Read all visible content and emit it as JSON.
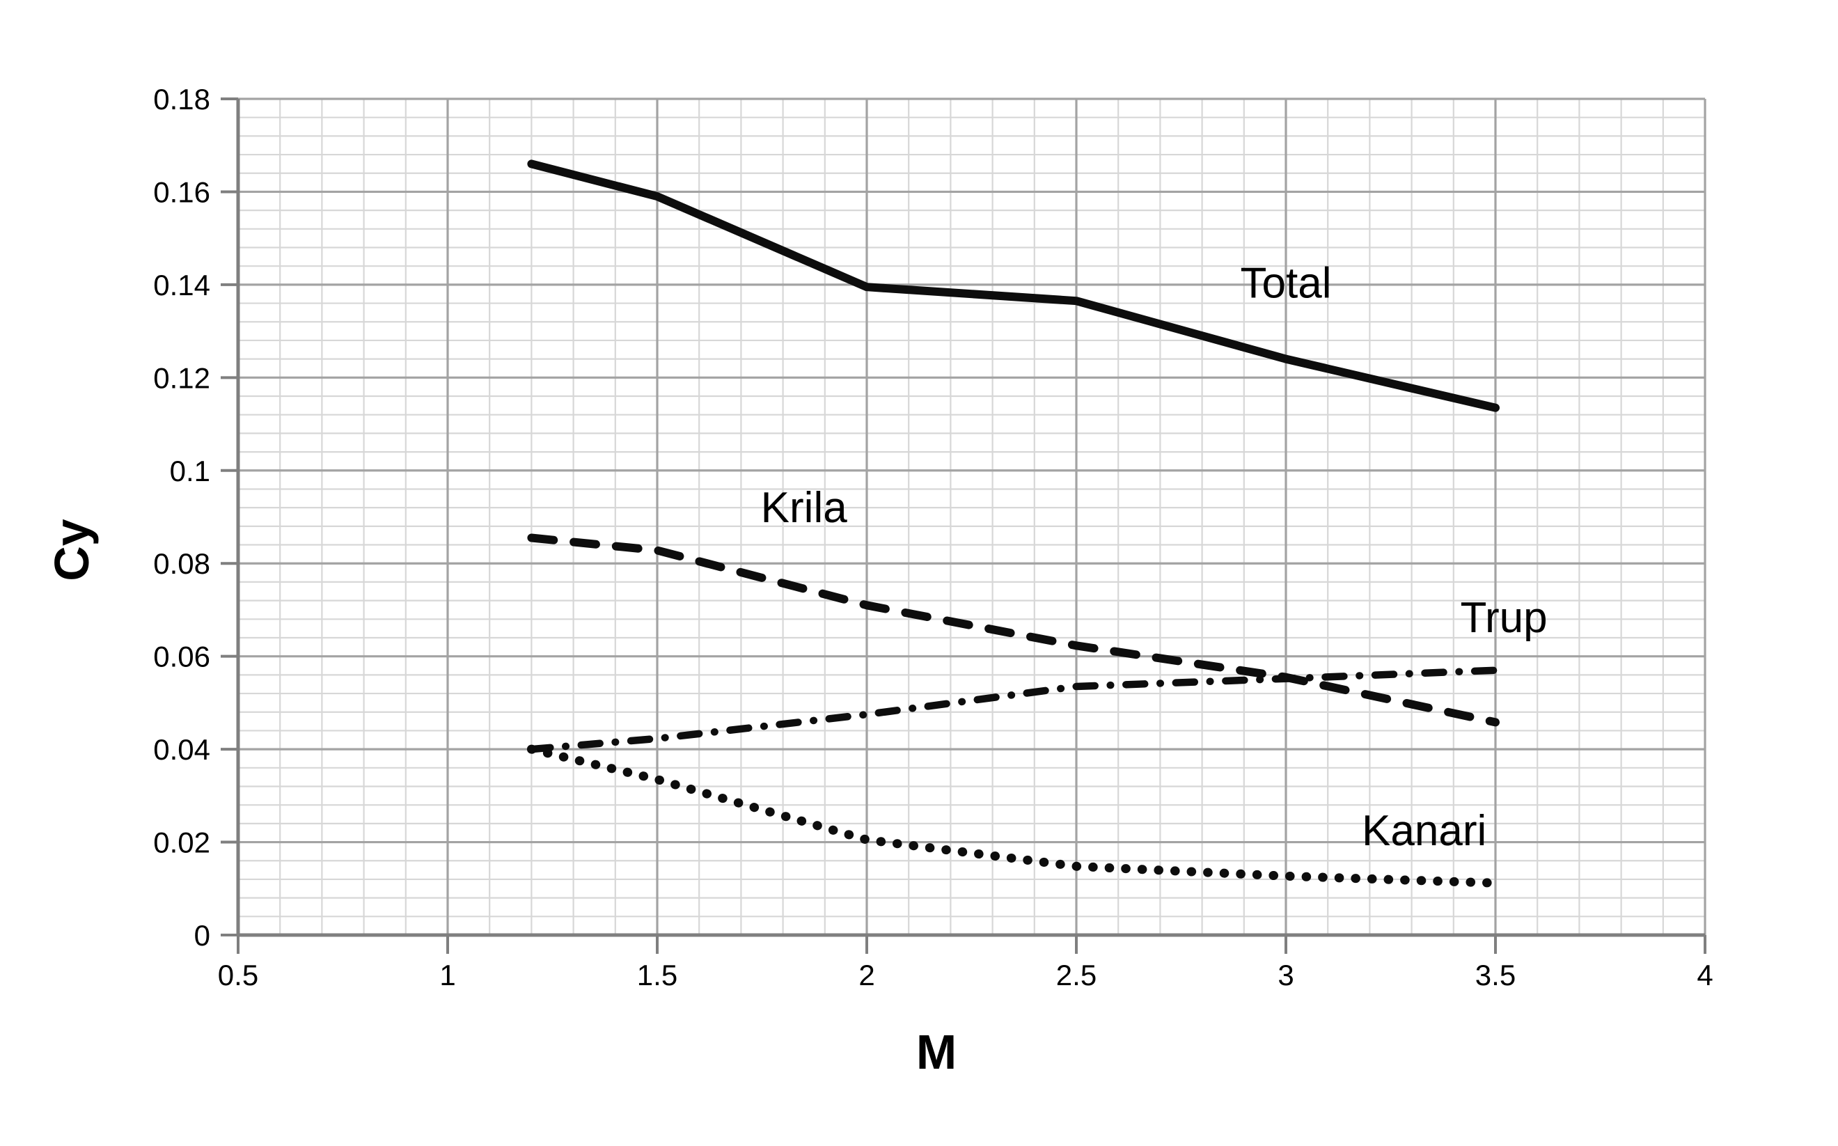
{
  "chart_data": {
    "type": "line",
    "title": "",
    "xlabel": "M",
    "ylabel": "Cy",
    "xlim": [
      0.5,
      4
    ],
    "ylim": [
      0,
      0.18
    ],
    "x_major_step": 0.5,
    "x_minor_step": 0.1,
    "y_major_step": 0.02,
    "y_minor_step": 0.004,
    "grid": "major and minor gridlines on",
    "legend": "inline text labels beside each line",
    "x_tick_labels": [
      "0.5",
      "1",
      "1.5",
      "2",
      "2.5",
      "3",
      "3.5",
      "4"
    ],
    "y_tick_labels": [
      "0",
      "0.02",
      "0.04",
      "0.06",
      "0.08",
      "0.1",
      "0.12",
      "0.14",
      "0.16",
      "0.18"
    ],
    "x": [
      1.2,
      1.5,
      2,
      2.5,
      3,
      3.5
    ],
    "series": [
      {
        "name": "Total",
        "line_style": "solid",
        "values": [
          0.166,
          0.159,
          0.1395,
          0.1365,
          0.124,
          0.1135
        ],
        "label_at": {
          "x": 3.0,
          "y": 0.1405
        }
      },
      {
        "name": "Krila",
        "line_style": "dashed",
        "values": [
          0.0855,
          0.0828,
          0.071,
          0.0623,
          0.0555,
          0.0458
        ],
        "label_at": {
          "x": 1.85,
          "y": 0.0922
        }
      },
      {
        "name": "Trup",
        "line_style": "dashdot",
        "values": [
          0.04,
          0.0423,
          0.0475,
          0.0535,
          0.0552,
          0.057
        ],
        "label_at": {
          "x": 3.52,
          "y": 0.0685
        }
      },
      {
        "name": "Kanari",
        "line_style": "dotted",
        "values": [
          0.04,
          0.0335,
          0.0205,
          0.0148,
          0.0127,
          0.0112
        ],
        "label_at": {
          "x": 3.33,
          "y": 0.0226
        }
      }
    ],
    "colors": {
      "line": "#0d0d0d",
      "grid_minor": "#d7d7d7",
      "grid_major": "#a3a3a3",
      "axis": "#7f7f7f",
      "text": "#000000",
      "background": "#ffffff"
    }
  }
}
